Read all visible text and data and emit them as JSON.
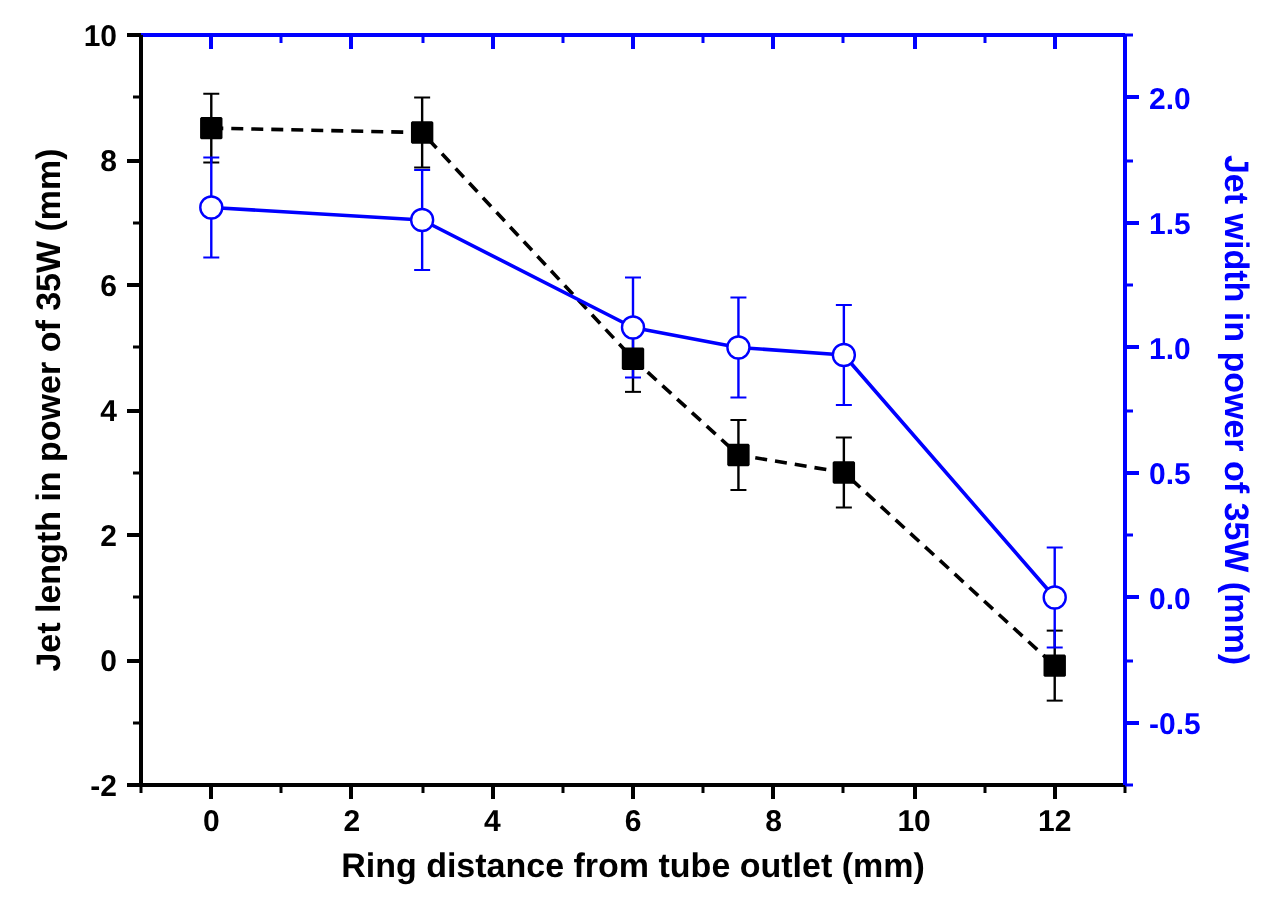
{
  "chart_data": {
    "type": "line",
    "xlabel": "Ring distance from tube outlet (mm)",
    "ylabel": "Jet length in power of 35W (mm)",
    "y2label": "Jet width in power of 35W (mm)",
    "x": [
      0,
      3,
      6,
      7.5,
      9,
      12
    ],
    "series": [
      {
        "color": "#000000",
        "values": [
          8.51,
          8.44,
          4.82,
          3.28,
          3.0,
          -0.09
        ],
        "errors": [
          0.55,
          0.56,
          0.53,
          0.56,
          0.56,
          0.56
        ],
        "marker": "square",
        "line_style": "dashed"
      },
      {
        "color": "#0000ff",
        "axis": "y2",
        "values": [
          1.56,
          1.51,
          1.08,
          1.0,
          0.97,
          0.0
        ],
        "errors": [
          0.2,
          0.2,
          0.2,
          0.2,
          0.2,
          0.2
        ],
        "marker": "circle",
        "line_style": "solid"
      }
    ],
    "xlim": [
      -1,
      13
    ],
    "xticks": [
      0,
      2,
      4,
      6,
      8,
      10,
      12
    ],
    "ylim": [
      -2,
      10
    ],
    "yticks": [
      -2,
      0,
      2,
      4,
      6,
      8,
      10
    ],
    "y2lim": [
      -0.75,
      2.25
    ],
    "y2ticks": [
      {
        "value": -0.5,
        "label": "-0.5"
      },
      {
        "value": 0,
        "label": "0.0"
      },
      {
        "value": 0.5,
        "label": "0.5"
      },
      {
        "value": 1,
        "label": "1.0"
      },
      {
        "value": 1.5,
        "label": "1.5"
      },
      {
        "value": 2,
        "label": "2.0"
      }
    ],
    "grid": false
  }
}
